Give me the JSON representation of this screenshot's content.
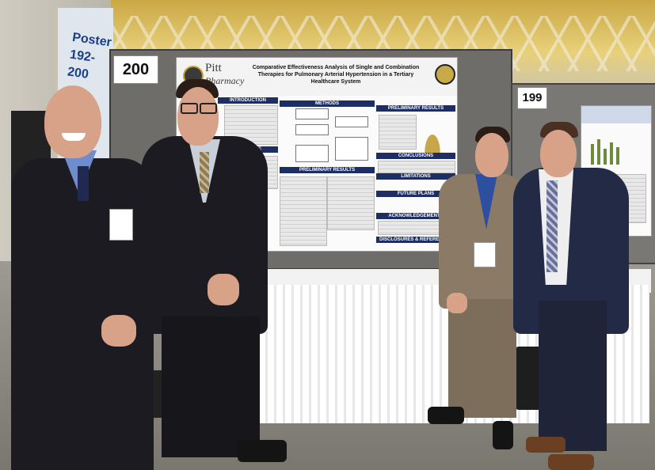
{
  "photo": {
    "booth_numbers": [
      "200",
      "199"
    ],
    "banner_text": "Poster 192-200",
    "poster": {
      "logo_name": "Pitt",
      "logo_sub": "Pharmacy",
      "title": "Comparative Effectiveness Analysis of Single and Combination Therapies for Pulmonary Arterial Hypertension in a Tertiary Healthcare System",
      "sections": [
        "INTRODUCTION",
        "METHODS",
        "PRELIMINARY RESULTS",
        "OBJECTIVE",
        "PRELIMINARY RESULTS",
        "CONCLUSIONS",
        "LIMITATIONS",
        "FUTURE PLANS",
        "ACKNOWLEDGEMENTS",
        "DISCLOSURES & REFERENCES"
      ]
    }
  },
  "colors": {
    "poster_header": "#1d2e63",
    "suit": "#1c1b21",
    "tan_suit": "#8a7a66",
    "navy_jacket": "#232a45"
  }
}
